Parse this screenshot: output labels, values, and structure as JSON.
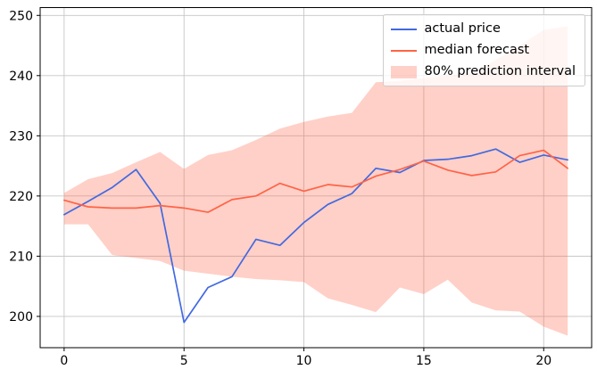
{
  "chart_data": {
    "type": "line",
    "title": "",
    "xlabel": "",
    "ylabel": "",
    "x": [
      0,
      1,
      2,
      3,
      4,
      5,
      6,
      7,
      8,
      9,
      10,
      11,
      12,
      13,
      14,
      15,
      16,
      17,
      18,
      19,
      20,
      21
    ],
    "series": [
      {
        "name": "actual price",
        "color": "#4169e1",
        "values": [
          216.9,
          219.1,
          221.4,
          224.4,
          218.8,
          199.0,
          204.8,
          206.6,
          212.8,
          211.8,
          215.6,
          218.6,
          220.4,
          224.6,
          223.9,
          225.9,
          226.1,
          226.7,
          227.8,
          225.6,
          226.8,
          226.0
        ]
      },
      {
        "name": "median forecast",
        "color": "#ff6347",
        "values": [
          219.3,
          218.2,
          218.0,
          218.0,
          218.4,
          218.0,
          217.3,
          219.4,
          220.0,
          222.1,
          220.8,
          221.9,
          221.5,
          223.3,
          224.4,
          225.8,
          224.3,
          223.4,
          224.0,
          226.7,
          227.6,
          224.6
        ]
      }
    ],
    "band": {
      "name": "80% prediction interval",
      "fill": "rgba(255,99,71,0.30)",
      "upper": [
        220.5,
        222.8,
        223.8,
        225.6,
        227.3,
        224.5,
        226.8,
        227.6,
        229.3,
        231.2,
        232.3,
        233.2,
        233.8,
        238.9,
        239.1,
        239.6,
        240.0,
        240.4,
        242.6,
        245.0,
        247.6,
        248.2
      ],
      "lower": [
        215.3,
        215.3,
        210.2,
        209.7,
        209.2,
        207.6,
        207.1,
        206.6,
        206.2,
        206.0,
        205.7,
        203.0,
        201.9,
        200.7,
        204.8,
        203.7,
        206.1,
        202.3,
        201.0,
        200.8,
        198.3,
        196.8
      ]
    },
    "xticks": [
      0,
      5,
      10,
      15,
      20
    ],
    "yticks": [
      200,
      210,
      220,
      230,
      240,
      250
    ],
    "xlim": [
      -1.0,
      22.0
    ],
    "ylim": [
      194.8,
      251.3
    ],
    "grid": true,
    "grid_color": "#c6c6c6",
    "spine_color": "#000000",
    "legend_position": "upper right"
  },
  "legend": {
    "items": [
      {
        "label": "actual price"
      },
      {
        "label": "median forecast"
      },
      {
        "label": "80% prediction interval"
      }
    ]
  }
}
